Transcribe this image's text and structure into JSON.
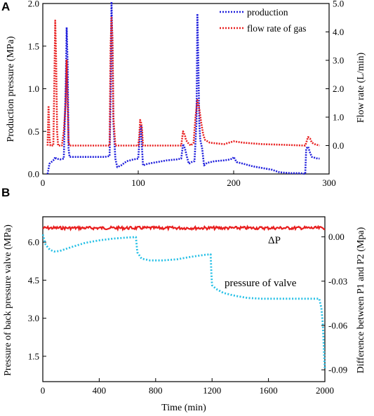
{
  "chart_data": [
    {
      "panel": "A",
      "type": "line",
      "title": "",
      "xlabel": "",
      "ylabel_left": "Production pressure (MPa)",
      "ylabel_right": "Flow rate (L/min)",
      "xlim": [
        0,
        300
      ],
      "ylim_left": [
        0,
        2.0
      ],
      "ylim_right": [
        -1,
        5.0
      ],
      "x_ticks": [
        "0",
        "100",
        "200",
        "300"
      ],
      "y_ticks_left": [
        "0.0",
        "0.5",
        "1.0",
        "1.5",
        "2.0"
      ],
      "y_ticks_right": [
        "0.0",
        "1.0",
        "2.0",
        "3.0",
        "4.0",
        "5.0"
      ],
      "legend_position": "top-right",
      "series": [
        {
          "name": "production",
          "axis": "left",
          "color": "#1f1fdc",
          "points": [
            [
              5,
              0.0
            ],
            [
              7,
              0.12
            ],
            [
              10,
              0.15
            ],
            [
              12,
              0.17
            ],
            [
              13,
              0.2
            ],
            [
              14,
              0.18
            ],
            [
              18,
              0.17
            ],
            [
              22,
              0.18
            ],
            [
              24,
              1.0
            ],
            [
              25,
              1.72
            ],
            [
              26,
              1.3
            ],
            [
              27,
              0.3
            ],
            [
              28,
              0.2
            ],
            [
              35,
              0.2
            ],
            [
              50,
              0.2
            ],
            [
              65,
              0.2
            ],
            [
              70,
              0.21
            ],
            [
              71,
              0.9
            ],
            [
              72,
              2.02
            ],
            [
              73,
              1.5
            ],
            [
              74,
              0.6
            ],
            [
              76,
              0.18
            ],
            [
              78,
              0.08
            ],
            [
              82,
              0.1
            ],
            [
              88,
              0.15
            ],
            [
              95,
              0.17
            ],
            [
              100,
              0.18
            ],
            [
              102,
              0.5
            ],
            [
              103,
              0.57
            ],
            [
              104,
              0.3
            ],
            [
              105,
              0.1
            ],
            [
              110,
              0.12
            ],
            [
              120,
              0.14
            ],
            [
              130,
              0.16
            ],
            [
              140,
              0.17
            ],
            [
              145,
              0.18
            ],
            [
              147,
              0.35
            ],
            [
              149,
              0.3
            ],
            [
              151,
              0.2
            ],
            [
              153,
              0.12
            ],
            [
              156,
              0.14
            ],
            [
              159,
              0.15
            ],
            [
              161,
              0.6
            ],
            [
              162,
              1.88
            ],
            [
              163,
              1.3
            ],
            [
              164,
              0.6
            ],
            [
              165,
              0.4
            ],
            [
              167,
              0.3
            ],
            [
              169,
              0.1
            ],
            [
              172,
              0.13
            ],
            [
              180,
              0.15
            ],
            [
              190,
              0.16
            ],
            [
              196,
              0.17
            ],
            [
              199,
              0.18
            ],
            [
              200,
              0.2
            ],
            [
              203,
              0.14
            ],
            [
              210,
              0.12
            ],
            [
              220,
              0.09
            ],
            [
              230,
              0.07
            ],
            [
              240,
              0.05
            ],
            [
              248,
              0.02
            ],
            [
              260,
              0.01
            ],
            [
              270,
              0.01
            ],
            [
              275,
              0.0
            ],
            [
              276,
              0.3
            ],
            [
              278,
              0.32
            ],
            [
              280,
              0.25
            ],
            [
              282,
              0.2
            ],
            [
              285,
              0.19
            ],
            [
              288,
              0.18
            ],
            [
              290,
              0.18
            ]
          ]
        },
        {
          "name": "flow rate of gas",
          "axis": "right",
          "color": "#e81e1e",
          "points": [
            [
              5,
              0.0
            ],
            [
              6,
              1.4
            ],
            [
              7,
              0.3
            ],
            [
              8,
              0.0
            ],
            [
              11,
              0.0
            ],
            [
              12,
              2.0
            ],
            [
              13,
              4.4
            ],
            [
              14,
              3.0
            ],
            [
              15,
              0.5
            ],
            [
              16,
              0.0
            ],
            [
              20,
              0.0
            ],
            [
              22,
              0.5
            ],
            [
              24,
              1.5
            ],
            [
              25,
              3.0
            ],
            [
              26,
              1.5
            ],
            [
              27,
              0.1
            ],
            [
              28,
              0.0
            ],
            [
              50,
              0.0
            ],
            [
              70,
              0.0
            ],
            [
              71,
              3.5
            ],
            [
              72,
              4.5
            ],
            [
              73,
              3.8
            ],
            [
              74,
              1.0
            ],
            [
              75,
              0.5
            ],
            [
              76,
              0.0
            ],
            [
              100,
              0.0
            ],
            [
              101,
              0.3
            ],
            [
              102,
              0.9
            ],
            [
              103,
              0.8
            ],
            [
              104,
              0.6
            ],
            [
              105,
              0.0
            ],
            [
              145,
              0.0
            ],
            [
              147,
              0.5
            ],
            [
              149,
              0.35
            ],
            [
              150,
              0.2
            ],
            [
              152,
              0.1
            ],
            [
              155,
              0.0
            ],
            [
              158,
              0.1
            ],
            [
              160,
              1.0
            ],
            [
              162,
              1.6
            ],
            [
              164,
              1.3
            ],
            [
              166,
              0.8
            ],
            [
              168,
              0.4
            ],
            [
              170,
              0.2
            ],
            [
              175,
              0.1
            ],
            [
              190,
              0.05
            ],
            [
              200,
              0.15
            ],
            [
              210,
              0.1
            ],
            [
              230,
              0.05
            ],
            [
              250,
              0.03
            ],
            [
              275,
              0.0
            ],
            [
              278,
              0.3
            ],
            [
              280,
              0.25
            ],
            [
              282,
              0.1
            ],
            [
              285,
              0.05
            ],
            [
              290,
              0.0
            ]
          ]
        }
      ]
    },
    {
      "panel": "B",
      "type": "line",
      "title": "",
      "xlabel": "Time (min)",
      "ylabel_left": "Pressure of  back pressure valve (MPa)",
      "ylabel_right": "Difference between P1 and P2 (Mpa)",
      "xlim": [
        0,
        2000
      ],
      "ylim_left": [
        0.5,
        7.0
      ],
      "ylim_right": [
        -0.098,
        0.0136
      ],
      "x_ticks": [
        "0",
        "400",
        "800",
        "1200",
        "1600",
        "2000"
      ],
      "y_ticks_left": [
        "1.5",
        "3.0",
        "4.5",
        "6.0"
      ],
      "y_ticks_right": [
        "-0.09",
        "-0.06",
        "-0.03",
        "0.00"
      ],
      "annotations": [
        "ΔP",
        "pressure of valve"
      ],
      "series": [
        {
          "name": "ΔP",
          "axis": "right",
          "color": "#e81e1e",
          "value": 0.006,
          "x_range": [
            0,
            2000
          ]
        },
        {
          "name": "pressure of valve",
          "axis": "left",
          "color": "#27c0e6",
          "points": [
            [
              0,
              6.3
            ],
            [
              20,
              5.9
            ],
            [
              50,
              5.7
            ],
            [
              80,
              5.63
            ],
            [
              120,
              5.65
            ],
            [
              200,
              5.8
            ],
            [
              300,
              5.97
            ],
            [
              400,
              6.07
            ],
            [
              500,
              6.14
            ],
            [
              600,
              6.18
            ],
            [
              660,
              6.2
            ],
            [
              665,
              5.9
            ],
            [
              670,
              5.6
            ],
            [
              700,
              5.35
            ],
            [
              760,
              5.28
            ],
            [
              850,
              5.28
            ],
            [
              950,
              5.32
            ],
            [
              1050,
              5.42
            ],
            [
              1150,
              5.5
            ],
            [
              1190,
              5.52
            ],
            [
              1195,
              4.8
            ],
            [
              1200,
              4.3
            ],
            [
              1230,
              4.15
            ],
            [
              1280,
              4.0
            ],
            [
              1350,
              3.9
            ],
            [
              1450,
              3.8
            ],
            [
              1550,
              3.77
            ],
            [
              1700,
              3.77
            ],
            [
              1850,
              3.77
            ],
            [
              1960,
              3.77
            ],
            [
              1975,
              3.4
            ],
            [
              1985,
              2.8
            ],
            [
              1990,
              2.2
            ],
            [
              1995,
              1.5
            ],
            [
              2000,
              1.0
            ]
          ]
        }
      ]
    }
  ]
}
